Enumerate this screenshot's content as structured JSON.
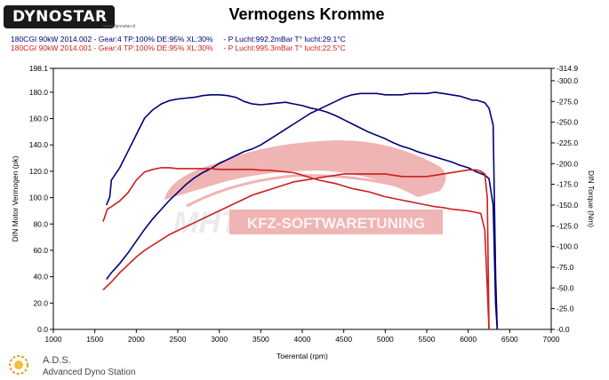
{
  "header": {
    "logo_text": "DYNOSTAR",
    "logo_sub": "www.dynostar.nl",
    "runs": [
      {
        "text": "180CGI 90kW 2014.002 - Gear:4 TP:100% DE:95% XL:30%     - P Lucht:992.2mBar T° lucht:29.1°C",
        "color": "#00007a"
      },
      {
        "text": "180CGI 90kW 2014.001 - Gear:4 TP:100% DE:95% XL:30%     - P Lucht:995.3mBar T° lucht:22.5°C",
        "color": "#cc1f1f"
      }
    ]
  },
  "watermark": {
    "brand": "MHT",
    "banner": "KFZ-SOFTWARETUNING"
  },
  "footer": {
    "name": "A.D.S.",
    "subtitle": "Advanced Dyno Station"
  },
  "chart_data": {
    "type": "line",
    "title": "Vermogens Kromme",
    "xlabel": "Toerental (rpm)",
    "ylabel": "DIN Motor Vermogen (pk)",
    "y2label": "DIN Torque (Nm)",
    "xlim": [
      1000,
      7000
    ],
    "ylim": [
      0,
      198.1
    ],
    "y2lim": [
      0,
      -314.9
    ],
    "x_ticks": [
      "1000",
      "1500",
      "2000",
      "2500",
      "3000",
      "3500",
      "4000",
      "4500",
      "5000",
      "5500",
      "6000",
      "6500",
      "7000"
    ],
    "y_ticks": [
      "0.0",
      "20.0",
      "40.0",
      "60.0",
      "80.0",
      "100.0",
      "120.0",
      "140.0",
      "160.0",
      "180.0",
      "198.1"
    ],
    "y2_ticks": [
      "-0.0",
      "-25.0",
      "-50.0",
      "-75.0",
      "-100.0",
      "-125.0",
      "-150.0",
      "-175.0",
      "-200.0",
      "-225.0",
      "-250.0",
      "-275.0",
      "-300.0",
      "-314.9"
    ],
    "grid": false,
    "series": [
      {
        "color": "#00007a",
        "axis": "left",
        "run": 0,
        "x": [
          1640,
          1700,
          1800,
          1900,
          2000,
          2100,
          2200,
          2300,
          2400,
          2500,
          2600,
          2700,
          2800,
          2900,
          3000,
          3100,
          3200,
          3300,
          3400,
          3500,
          3600,
          3700,
          3800,
          3900,
          4000,
          4100,
          4200,
          4300,
          4400,
          4500,
          4600,
          4700,
          4800,
          4900,
          5000,
          5100,
          5200,
          5300,
          5400,
          5500,
          5600,
          5700,
          5800,
          5900,
          6000,
          6050,
          6100,
          6150,
          6200,
          6250,
          6300,
          6330,
          6350
        ],
        "y": [
          38,
          43,
          50,
          58,
          67,
          76,
          84,
          91,
          98,
          104,
          110,
          115,
          119,
          122,
          126,
          129,
          132,
          135,
          137,
          140,
          144,
          148,
          152,
          156,
          160,
          164,
          167,
          170,
          173,
          176,
          178,
          179,
          179,
          179,
          178,
          178,
          178,
          179,
          179,
          179,
          180,
          179,
          178,
          177,
          175,
          174,
          174,
          173,
          172,
          168,
          155,
          40,
          0
        ]
      },
      {
        "color": "#00007a",
        "axis": "right",
        "run": 0,
        "x": [
          1640,
          1680,
          1700,
          1800,
          1900,
          2000,
          2100,
          2200,
          2300,
          2400,
          2500,
          2600,
          2700,
          2800,
          2900,
          3000,
          3100,
          3200,
          3300,
          3400,
          3500,
          3600,
          3700,
          3800,
          3900,
          4000,
          4100,
          4200,
          4300,
          4400,
          4500,
          4600,
          4700,
          4800,
          4900,
          5000,
          5100,
          5200,
          5300,
          5400,
          5500,
          5600,
          5700,
          5800,
          5900,
          6000,
          6100,
          6200,
          6250,
          6300,
          6330,
          6350
        ],
        "y": [
          -150,
          -160,
          -180,
          -195,
          -215,
          -235,
          -255,
          -265,
          -272,
          -276,
          -278,
          -279,
          -280,
          -282,
          -283,
          -283,
          -282,
          -280,
          -275,
          -272,
          -271,
          -272,
          -273,
          -274,
          -272,
          -270,
          -267,
          -265,
          -262,
          -258,
          -253,
          -248,
          -243,
          -238,
          -234,
          -230,
          -225,
          -221,
          -218,
          -214,
          -211,
          -208,
          -205,
          -202,
          -198,
          -195,
          -190,
          -186,
          -182,
          -150,
          -30,
          0
        ]
      },
      {
        "color": "#cc1f1f",
        "axis": "left",
        "run": 1,
        "x": [
          1600,
          1700,
          1800,
          1900,
          2000,
          2100,
          2200,
          2300,
          2400,
          2500,
          2600,
          2700,
          2800,
          2900,
          3000,
          3100,
          3200,
          3300,
          3400,
          3500,
          3600,
          3700,
          3800,
          3900,
          4000,
          4100,
          4200,
          4300,
          4400,
          4500,
          4600,
          4700,
          4800,
          4900,
          5000,
          5100,
          5200,
          5300,
          5400,
          5500,
          5600,
          5700,
          5800,
          5900,
          6000,
          6100,
          6150,
          6200,
          6230,
          6250
        ],
        "y": [
          30,
          36,
          43,
          49,
          55,
          60,
          64,
          68,
          72,
          75,
          78,
          81,
          84,
          87,
          90,
          93,
          96,
          99,
          102,
          104,
          106,
          108,
          110,
          112,
          113,
          114,
          115,
          116,
          117,
          118,
          118,
          118,
          118,
          118,
          118,
          117,
          116,
          116,
          116,
          116,
          117,
          118,
          119,
          120,
          121,
          121,
          120,
          118,
          100,
          0
        ]
      },
      {
        "color": "#cc1f1f",
        "axis": "right",
        "run": 1,
        "x": [
          1600,
          1650,
          1700,
          1800,
          1900,
          2000,
          2100,
          2200,
          2300,
          2400,
          2500,
          2600,
          2700,
          2800,
          2900,
          3000,
          3100,
          3200,
          3300,
          3400,
          3500,
          3600,
          3700,
          3800,
          3900,
          4000,
          4100,
          4200,
          4300,
          4400,
          4500,
          4600,
          4700,
          4800,
          4900,
          5000,
          5100,
          5200,
          5300,
          5400,
          5500,
          5600,
          5700,
          5800,
          5900,
          6000,
          6100,
          6150,
          6200,
          6230,
          6250
        ],
        "y": [
          -130,
          -145,
          -148,
          -155,
          -165,
          -180,
          -190,
          -193,
          -195,
          -195,
          -194,
          -194,
          -194,
          -194,
          -194,
          -193,
          -193,
          -193,
          -193,
          -193,
          -192,
          -192,
          -191,
          -190,
          -189,
          -186,
          -183,
          -180,
          -178,
          -176,
          -173,
          -170,
          -168,
          -166,
          -163,
          -160,
          -158,
          -156,
          -154,
          -152,
          -150,
          -148,
          -147,
          -145,
          -144,
          -143,
          -141,
          -140,
          -120,
          -50,
          0
        ]
      }
    ]
  }
}
